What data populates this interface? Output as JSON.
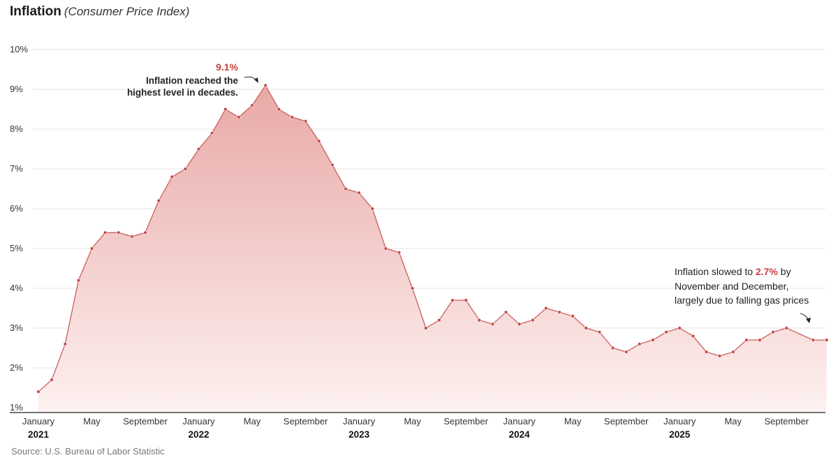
{
  "header": {
    "title": "Inflation",
    "subtitle": "(Consumer Price Index)"
  },
  "source": "Source: U.S. Bureau of Labor Statistic",
  "colors": {
    "line": "#c9605e",
    "marker": "#c24a48",
    "fill_top": "#e8a9a6",
    "fill_bottom": "#fdf1f0",
    "annotation_value": "#c9423f",
    "grid": "#e4e4e4"
  },
  "chart_data": {
    "type": "area",
    "title": "Inflation",
    "subtitle": "(Consumer Price Index)",
    "ylim": [
      1,
      10
    ],
    "yticks": [
      1,
      2,
      3,
      4,
      5,
      6,
      7,
      8,
      9,
      10
    ],
    "ytick_labels": [
      "1%",
      "2%",
      "3%",
      "4%",
      "5%",
      "6%",
      "7%",
      "8%",
      "9%",
      "10%"
    ],
    "grid": true,
    "x_start": "2021-01",
    "x_end": "2025-12",
    "x_tick_labels": [
      {
        "label": "January",
        "year": "2021",
        "date": "2021-01"
      },
      {
        "label": "May",
        "year": "",
        "date": "2021-05"
      },
      {
        "label": "September",
        "year": "",
        "date": "2021-09"
      },
      {
        "label": "January",
        "year": "2022",
        "date": "2022-01"
      },
      {
        "label": "May",
        "year": "",
        "date": "2022-05"
      },
      {
        "label": "September",
        "year": "",
        "date": "2022-09"
      },
      {
        "label": "January",
        "year": "2023",
        "date": "2023-01"
      },
      {
        "label": "May",
        "year": "",
        "date": "2023-05"
      },
      {
        "label": "September",
        "year": "",
        "date": "2023-09"
      },
      {
        "label": "January",
        "year": "2024",
        "date": "2024-01"
      },
      {
        "label": "May",
        "year": "",
        "date": "2024-05"
      },
      {
        "label": "September",
        "year": "",
        "date": "2024-09"
      },
      {
        "label": "January",
        "year": "2025",
        "date": "2025-01"
      },
      {
        "label": "May",
        "year": "",
        "date": "2025-05"
      },
      {
        "label": "September",
        "year": "",
        "date": "2025-09"
      }
    ],
    "series": [
      {
        "points": [
          [
            "2021-01",
            1.4
          ],
          [
            "2021-02",
            1.7
          ],
          [
            "2021-03",
            2.6
          ],
          [
            "2021-04",
            4.2
          ],
          [
            "2021-05",
            5.0
          ],
          [
            "2021-06",
            5.4
          ],
          [
            "2021-07",
            5.4
          ],
          [
            "2021-08",
            5.3
          ],
          [
            "2021-09",
            5.4
          ],
          [
            "2021-10",
            6.2
          ],
          [
            "2021-11",
            6.8
          ],
          [
            "2021-12",
            7.0
          ],
          [
            "2022-01",
            7.5
          ],
          [
            "2022-02",
            7.9
          ],
          [
            "2022-03",
            8.5
          ],
          [
            "2022-04",
            8.3
          ],
          [
            "2022-05",
            8.6
          ],
          [
            "2022-06",
            9.1
          ],
          [
            "2022-07",
            8.5
          ],
          [
            "2022-08",
            8.3
          ],
          [
            "2022-09",
            8.2
          ],
          [
            "2022-10",
            7.7
          ],
          [
            "2022-11",
            7.1
          ],
          [
            "2022-12",
            6.5
          ],
          [
            "2023-01",
            6.4
          ],
          [
            "2023-02",
            6.0
          ],
          [
            "2023-03",
            5.0
          ],
          [
            "2023-04",
            4.9
          ],
          [
            "2023-05",
            4.0
          ],
          [
            "2023-06",
            3.0
          ],
          [
            "2023-07",
            3.2
          ],
          [
            "2023-08",
            3.7
          ],
          [
            "2023-09",
            3.7
          ],
          [
            "2023-10",
            3.2
          ],
          [
            "2023-11",
            3.1
          ],
          [
            "2023-12",
            3.4
          ],
          [
            "2024-01",
            3.1
          ],
          [
            "2024-02",
            3.2
          ],
          [
            "2024-03",
            3.5
          ],
          [
            "2024-04",
            3.4
          ],
          [
            "2024-05",
            3.3
          ],
          [
            "2024-06",
            3.0
          ],
          [
            "2024-07",
            2.9
          ],
          [
            "2024-08",
            2.5
          ],
          [
            "2024-09",
            2.4
          ],
          [
            "2024-10",
            2.6
          ],
          [
            "2024-11",
            2.7
          ],
          [
            "2024-12",
            2.9
          ],
          [
            "2025-01",
            3.0
          ],
          [
            "2025-02",
            2.8
          ],
          [
            "2025-03",
            2.4
          ],
          [
            "2025-04",
            2.3
          ],
          [
            "2025-05",
            2.4
          ],
          [
            "2025-06",
            2.7
          ],
          [
            "2025-07",
            2.7
          ],
          [
            "2025-08",
            2.9
          ],
          [
            "2025-09",
            3.0
          ],
          [
            "2025-11",
            2.7
          ],
          [
            "2025-12",
            2.7
          ]
        ]
      }
    ],
    "annotations": [
      {
        "id": "peak",
        "value_text": "9.1%",
        "lines": [
          "Inflation reached the",
          "highest level in decades."
        ],
        "target": [
          "2022-06",
          9.1
        ]
      },
      {
        "id": "latest",
        "prefix": "Inflation slowed to ",
        "value_text": "2.7%",
        "suffix": " by",
        "lines": [
          "November and December,",
          "largely due to falling gas prices"
        ],
        "target": [
          "2025-12",
          2.7
        ]
      }
    ]
  }
}
